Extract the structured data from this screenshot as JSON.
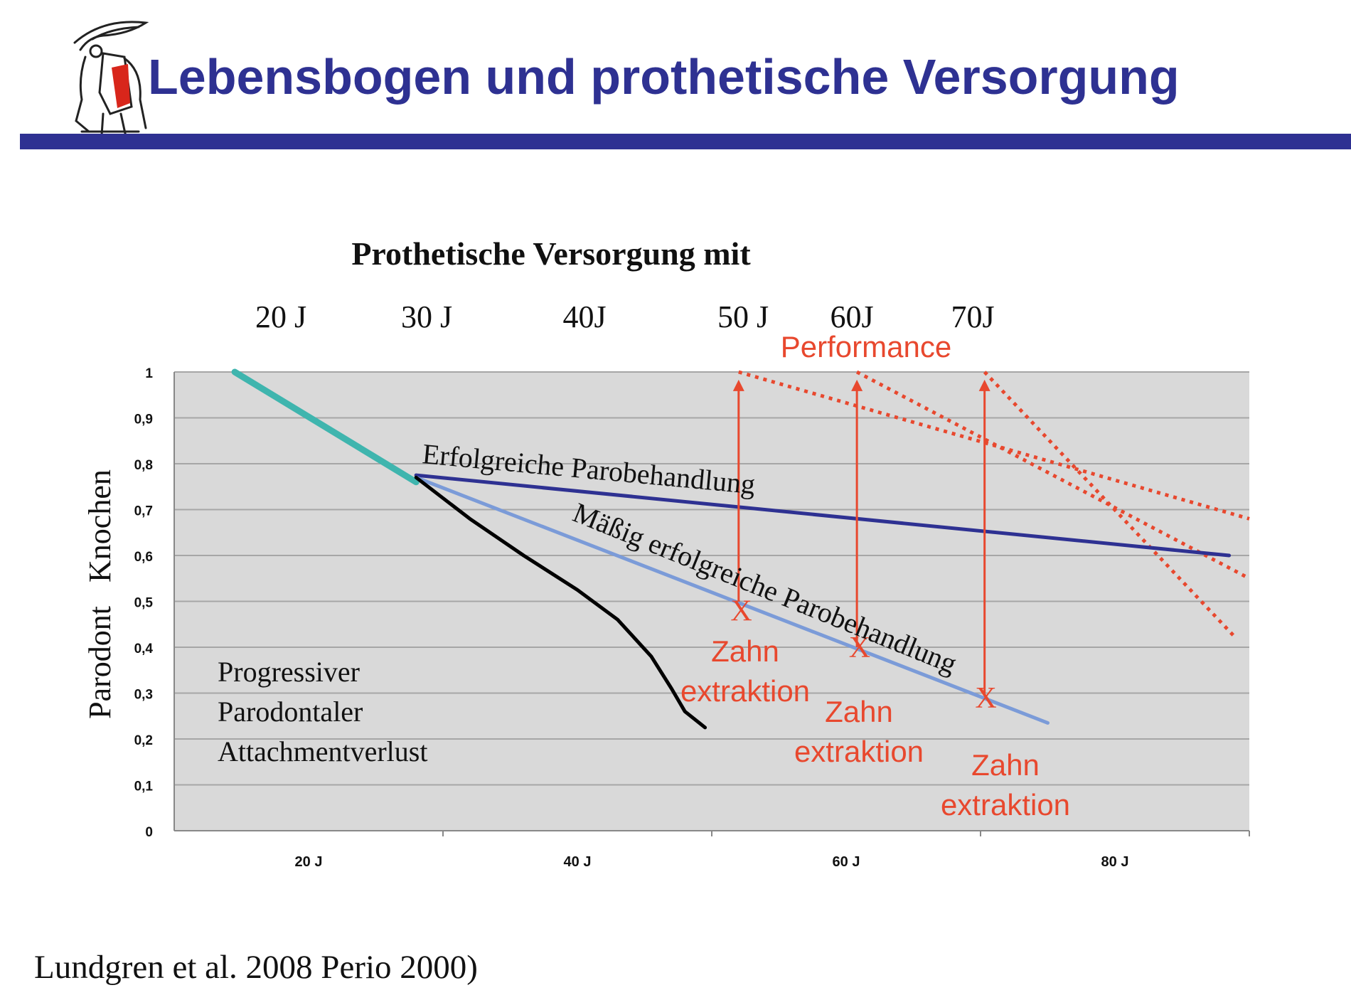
{
  "slide": {
    "title": "Lebensbogen und prothetische Versorgung",
    "citation": "Lundgren et al. 2008 Perio 2000)"
  },
  "chart_data": {
    "type": "line",
    "title": "Prothetische Versorgung mit",
    "top_age_labels": [
      "20 J",
      "30 J",
      "40J",
      "50 J",
      "60J",
      "70J"
    ],
    "performance_label": "Performance",
    "ylabel": "Parodont   Knochen",
    "yticks": [
      "0",
      "0,1",
      "0,2",
      "0,3",
      "0,4",
      "0,5",
      "0,6",
      "0,7",
      "0,8",
      "0,9",
      "1"
    ],
    "ylim": [
      0,
      1
    ],
    "xticks": [
      {
        "x": 20,
        "label": "20 J"
      },
      {
        "x": 40,
        "label": "40 J"
      },
      {
        "x": 60,
        "label": "60 J"
      },
      {
        "x": 80,
        "label": "80 J"
      }
    ],
    "xlim": [
      10,
      90
    ],
    "grid": true,
    "series": [
      {
        "color": "#3fb5ae",
        "points": [
          [
            14.5,
            1.0
          ],
          [
            28,
            0.76
          ]
        ]
      },
      {
        "color": "#2e3192",
        "points": [
          [
            28,
            0.775
          ],
          [
            88.5,
            0.6
          ]
        ]
      },
      {
        "color": "#7b9bd8",
        "points": [
          [
            28,
            0.77
          ],
          [
            75,
            0.235
          ]
        ]
      },
      {
        "color": "#000000",
        "points": [
          [
            28,
            0.77
          ],
          [
            32,
            0.68
          ],
          [
            36,
            0.6
          ],
          [
            40,
            0.525
          ],
          [
            43,
            0.46
          ],
          [
            45.5,
            0.38
          ],
          [
            47,
            0.31
          ],
          [
            48,
            0.26
          ],
          [
            49.5,
            0.225
          ]
        ]
      }
    ],
    "performance_lines": [
      {
        "color": "#e8482e",
        "points": [
          [
            52,
            1.0
          ],
          [
            90,
            0.68
          ]
        ]
      },
      {
        "color": "#e8482e",
        "points": [
          [
            60.8,
            1.0
          ],
          [
            90,
            0.55
          ]
        ]
      },
      {
        "color": "#e8482e",
        "points": [
          [
            70.3,
            1.0
          ],
          [
            89,
            0.42
          ]
        ]
      }
    ],
    "extraction_arrows": [
      {
        "x": 52,
        "from": 0.5,
        "to": 0.98
      },
      {
        "x": 60.8,
        "from": 0.4,
        "to": 0.98
      },
      {
        "x": 70.3,
        "from": 0.3,
        "to": 0.98
      }
    ],
    "extraction_marks": [
      {
        "x": 52.2,
        "y": 0.48
      },
      {
        "x": 61,
        "y": 0.4
      },
      {
        "x": 70.4,
        "y": 0.29
      }
    ],
    "annotations": {
      "erfolgreich": "Erfolgreiche Parobehandlung",
      "maessig": "Mäßig erfolgreiche Parobehandlung",
      "progressiv": [
        "Progressiver",
        "Parodontaler",
        "Attachmentverlust"
      ],
      "mark": "X",
      "zahn": [
        "Zahn",
        "extraktion"
      ]
    },
    "colors": {
      "accent": "#e8482e",
      "title": "#2e3192",
      "plot_bg": "#d9d9d9"
    }
  }
}
